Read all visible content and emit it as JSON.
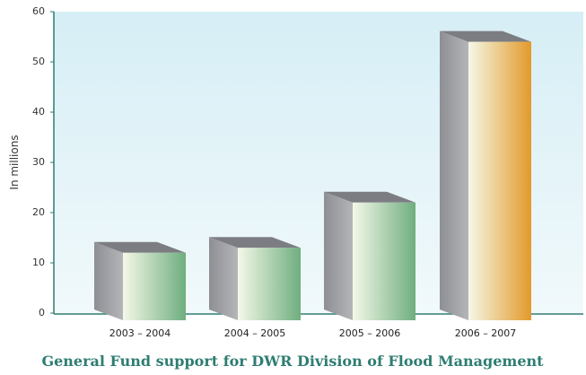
{
  "chart_data": {
    "type": "bar3d",
    "title": "General Fund support for DWR Division of Flood Management",
    "y_label": "In millions",
    "categories": [
      "2003 – 2004",
      "2004 – 2005",
      "2005 – 2006",
      "2006 – 2007"
    ],
    "values": [
      12,
      13,
      22,
      54
    ],
    "colors": [
      "#6fae7f",
      "#6fae7f",
      "#6fae7f",
      "#e39a2a"
    ],
    "ylim": [
      0,
      60
    ],
    "yticks": [
      0,
      10,
      20,
      30,
      40,
      50,
      60
    ]
  }
}
